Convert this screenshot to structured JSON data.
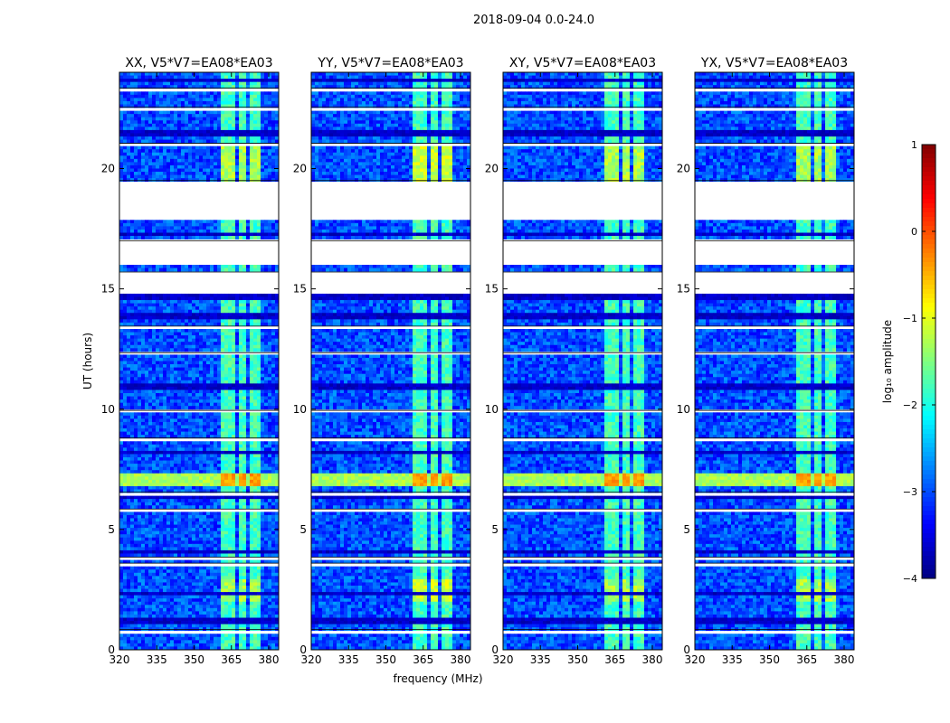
{
  "chart_data": {
    "type": "heatmap",
    "suptitle": "2018-09-04 0.0-24.0",
    "panels": [
      {
        "title": "XX, V5*V7=EA08*EA03",
        "band_peak": 1.0,
        "has_ylabel": true,
        "has_xlabel": false
      },
      {
        "title": "YY, V5*V7=EA08*EA03",
        "band_peak": 1.35,
        "has_ylabel": false,
        "has_xlabel": true
      },
      {
        "title": "XY, V5*V7=EA08*EA03",
        "band_peak": 1.0,
        "has_ylabel": false,
        "has_xlabel": false
      },
      {
        "title": "YX, V5*V7=EA08*EA03",
        "band_peak": 1.0,
        "has_ylabel": false,
        "has_xlabel": false
      }
    ],
    "xlabel": "frequency (MHz)",
    "ylabel": "UT (hours)",
    "xlim": [
      320,
      384
    ],
    "ylim": [
      0,
      24
    ],
    "xticks": [
      320,
      335,
      350,
      365,
      380
    ],
    "yticks": [
      0,
      5,
      10,
      15,
      20
    ],
    "colorbar": {
      "label": "log₁₀ amplitude",
      "range": [
        -4,
        1
      ],
      "ticks": [
        "1",
        "0",
        "−1",
        "−2",
        "−3",
        "−4"
      ],
      "tick_values": [
        1,
        0,
        -1,
        -2,
        -3,
        -4
      ]
    },
    "background_level": -3.0,
    "band_ranges_mhz": [
      [
        360.5,
        367
      ],
      [
        368,
        371
      ],
      [
        372.5,
        376
      ]
    ],
    "band_level": -1.8,
    "interference_hours": [
      [
        6.85,
        7.35
      ]
    ],
    "interference_level": -1.3,
    "bright_hours": [
      [
        2.0,
        2.9
      ],
      [
        19.5,
        20.9
      ]
    ],
    "gap_hours": [
      [
        17.9,
        19.5
      ],
      [
        14.8,
        15.7
      ],
      [
        16.0,
        17.0
      ],
      [
        0.7,
        0.85
      ],
      [
        5.7,
        5.85
      ],
      [
        6.45,
        6.55
      ],
      [
        8.7,
        8.8
      ],
      [
        9.9,
        9.95
      ],
      [
        12.3,
        12.35
      ],
      [
        13.3,
        13.45
      ],
      [
        22.45,
        22.55
      ],
      [
        23.25,
        23.35
      ],
      [
        21.0,
        21.05
      ],
      [
        3.5,
        3.6
      ],
      [
        3.8,
        3.85
      ]
    ],
    "dark_row_hours": [
      [
        1.05,
        1.35
      ],
      [
        0.2,
        0.3
      ],
      [
        6.2,
        6.4
      ],
      [
        8.1,
        8.2
      ],
      [
        10.8,
        11.0
      ],
      [
        13.7,
        13.95
      ],
      [
        14.6,
        14.75
      ],
      [
        17.2,
        17.35
      ],
      [
        21.4,
        21.6
      ],
      [
        23.6,
        23.75
      ],
      [
        4.0,
        4.15
      ],
      [
        2.3,
        2.35
      ]
    ]
  }
}
